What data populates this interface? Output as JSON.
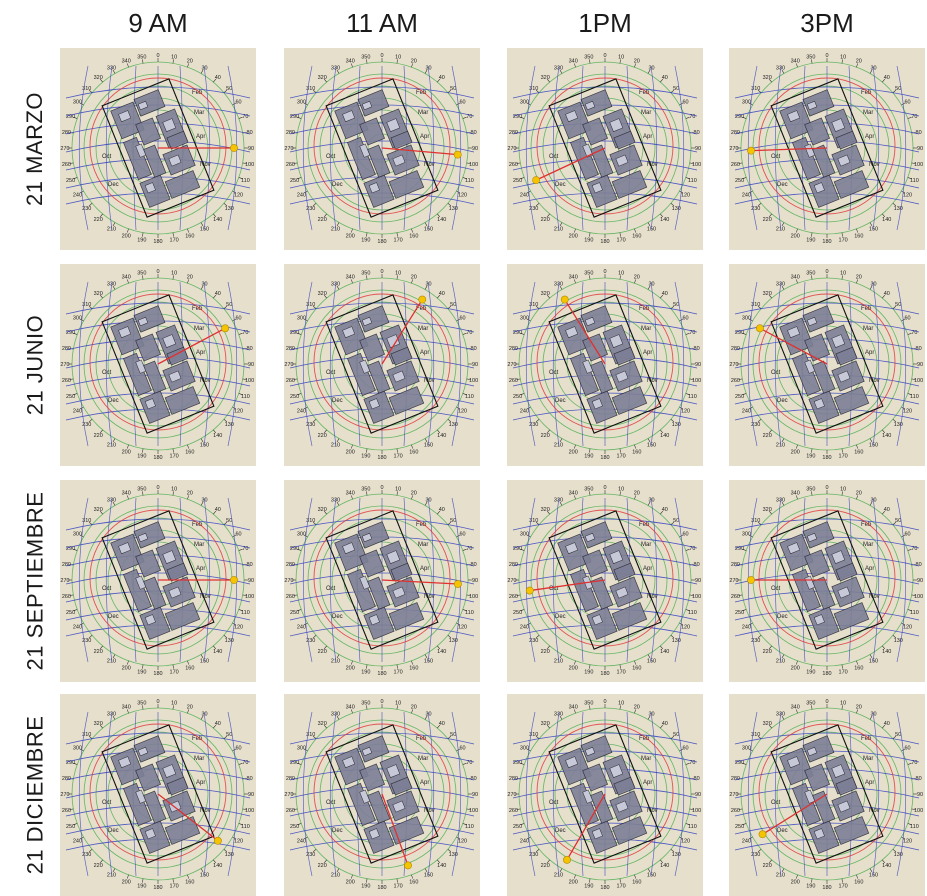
{
  "columns": [
    "9 AM",
    "11 AM",
    "1PM",
    "3PM"
  ],
  "rows": [
    "21 MARZO",
    "21 JUNIO",
    "21 SEPTIEMBRE",
    "21 DICIEMBRE"
  ],
  "compass_labels": [
    "0",
    "10",
    "20",
    "30",
    "40",
    "50",
    "60",
    "70",
    "80",
    "90",
    "100",
    "110",
    "120",
    "130",
    "140",
    "150",
    "160",
    "170",
    "180",
    "190",
    "200",
    "210",
    "220",
    "230",
    "240",
    "250",
    "260",
    "270",
    "280",
    "290",
    "300",
    "310",
    "320",
    "330",
    "340",
    "350"
  ],
  "month_labels": [
    "Mar",
    "Apr",
    "Oct",
    "Dec",
    "Nov",
    "Feb"
  ],
  "colors": {
    "panel_bg": "#e6dfcc",
    "altitude_rings": "#4caf50",
    "date_lines": "#2f3fbf",
    "sun_path": "#e03030",
    "sun_marker": "#f5c400",
    "building": "#7d7f96",
    "outline": "#111111"
  },
  "sun_azimuth_deg": [
    [
      90,
      95,
      245,
      268
    ],
    [
      62,
      32,
      328,
      298
    ],
    [
      90,
      93,
      262,
      270
    ],
    [
      128,
      160,
      210,
      238
    ]
  ]
}
